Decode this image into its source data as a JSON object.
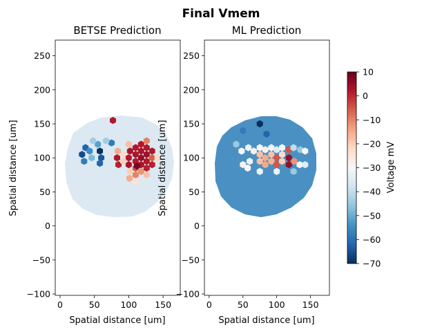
{
  "figure_title": "Final Vmem",
  "colorbar": {
    "label": "Voltage mV",
    "ticks": [
      10,
      0,
      -10,
      -20,
      -30,
      -40,
      -50,
      -60,
      -70
    ],
    "range": [
      -70,
      10
    ],
    "colormap": "RdBu_r",
    "colors": [
      "#053061",
      "#2166ac",
      "#4393c3",
      "#92c5de",
      "#d1e5f0",
      "#f7f7f7",
      "#fddbc7",
      "#f4a582",
      "#d6604d",
      "#b2182b",
      "#67001f"
    ]
  },
  "chart_data": [
    {
      "type": "heatmap",
      "title": "BETSE Prediction",
      "xlabel": "Spatial distance [um]",
      "ylabel": "Spatial distance [um]",
      "xlim": [
        -7,
        175
      ],
      "ylim": [
        -102,
        273
      ],
      "xticks": [
        "0",
        "50",
        "100",
        "150"
      ],
      "yticks": [
        "250",
        "200",
        "150",
        "100",
        "50",
        "0",
        "−50",
        "−100"
      ],
      "background_vmem": -35,
      "cells_vmem": [
        {
          "x": 32,
          "y": 105,
          "v": -66
        },
        {
          "x": 37,
          "y": 115,
          "v": -62
        },
        {
          "x": 35,
          "y": 95,
          "v": -58
        },
        {
          "x": 43,
          "y": 110,
          "v": -55
        },
        {
          "x": 46,
          "y": 100,
          "v": -48
        },
        {
          "x": 55,
          "y": 120,
          "v": -52
        },
        {
          "x": 58,
          "y": 110,
          "v": -70
        },
        {
          "x": 60,
          "y": 100,
          "v": -64
        },
        {
          "x": 58,
          "y": 92,
          "v": -62
        },
        {
          "x": 48,
          "y": 125,
          "v": -44
        },
        {
          "x": 75,
          "y": 122,
          "v": -58
        },
        {
          "x": 77,
          "y": 155,
          "v": 2
        },
        {
          "x": 83,
          "y": 100,
          "v": 2
        },
        {
          "x": 84,
          "y": 110,
          "v": -15
        },
        {
          "x": 85,
          "y": 90,
          "v": 1
        },
        {
          "x": 93,
          "y": 105,
          "v": -22
        },
        {
          "x": 100,
          "y": 120,
          "v": -18
        },
        {
          "x": 102,
          "y": 110,
          "v": 3
        },
        {
          "x": 100,
          "y": 100,
          "v": 2
        },
        {
          "x": 100,
          "y": 90,
          "v": 3
        },
        {
          "x": 102,
          "y": 80,
          "v": -20
        },
        {
          "x": 101,
          "y": 70,
          "v": -15
        },
        {
          "x": 110,
          "y": 115,
          "v": 2
        },
        {
          "x": 110,
          "y": 105,
          "v": 3
        },
        {
          "x": 110,
          "y": 95,
          "v": 2
        },
        {
          "x": 110,
          "y": 85,
          "v": -5
        },
        {
          "x": 110,
          "y": 75,
          "v": -10
        },
        {
          "x": 118,
          "y": 120,
          "v": 2
        },
        {
          "x": 118,
          "y": 110,
          "v": 3
        },
        {
          "x": 118,
          "y": 100,
          "v": 5
        },
        {
          "x": 118,
          "y": 90,
          "v": 3
        },
        {
          "x": 118,
          "y": 80,
          "v": -12
        },
        {
          "x": 110,
          "y": 65,
          "v": -24
        },
        {
          "x": 126,
          "y": 115,
          "v": 2
        },
        {
          "x": 126,
          "y": 105,
          "v": 4
        },
        {
          "x": 126,
          "y": 95,
          "v": 2
        },
        {
          "x": 112,
          "y": 88,
          "v": 8
        },
        {
          "x": 126,
          "y": 85,
          "v": 1
        },
        {
          "x": 126,
          "y": 75,
          "v": -18
        },
        {
          "x": 134,
          "y": 110,
          "v": 2
        },
        {
          "x": 134,
          "y": 100,
          "v": -6
        },
        {
          "x": 134,
          "y": 90,
          "v": 1
        },
        {
          "x": 126,
          "y": 125,
          "v": -10
        },
        {
          "x": 142,
          "y": 100,
          "v": -22
        },
        {
          "x": 92,
          "y": 95,
          "v": -20
        },
        {
          "x": 67,
          "y": 125,
          "v": -44
        }
      ]
    },
    {
      "type": "heatmap",
      "title": "ML Prediction",
      "xlabel": "Spatial distance [um]",
      "ylabel": "Spatial distance [um]",
      "xlim": [
        -7,
        178
      ],
      "ylim": [
        -102,
        273
      ],
      "xticks": [
        "0",
        "50",
        "100",
        "150"
      ],
      "yticks": [
        "250",
        "200",
        "150",
        "100",
        "50",
        "0",
        "−50",
        "−100"
      ],
      "background_vmem": -50,
      "cells_vmem": [
        {
          "x": 75,
          "y": 150,
          "v": -70
        },
        {
          "x": 50,
          "y": 140,
          "v": -58
        },
        {
          "x": 85,
          "y": 135,
          "v": -62
        },
        {
          "x": 40,
          "y": 120,
          "v": -45
        },
        {
          "x": 48,
          "y": 110,
          "v": -30
        },
        {
          "x": 58,
          "y": 115,
          "v": -32
        },
        {
          "x": 66,
          "y": 110,
          "v": -28
        },
        {
          "x": 75,
          "y": 115,
          "v": -30
        },
        {
          "x": 83,
          "y": 112,
          "v": -28
        },
        {
          "x": 92,
          "y": 115,
          "v": -32
        },
        {
          "x": 100,
          "y": 112,
          "v": -35
        },
        {
          "x": 108,
          "y": 115,
          "v": -30
        },
        {
          "x": 118,
          "y": 112,
          "v": -5
        },
        {
          "x": 125,
          "y": 115,
          "v": -40
        },
        {
          "x": 135,
          "y": 112,
          "v": -45
        },
        {
          "x": 75,
          "y": 105,
          "v": -18
        },
        {
          "x": 83,
          "y": 100,
          "v": -15
        },
        {
          "x": 92,
          "y": 105,
          "v": -18
        },
        {
          "x": 100,
          "y": 100,
          "v": -5
        },
        {
          "x": 108,
          "y": 105,
          "v": -22
        },
        {
          "x": 118,
          "y": 100,
          "v": 5
        },
        {
          "x": 75,
          "y": 95,
          "v": -18
        },
        {
          "x": 83,
          "y": 90,
          "v": -15
        },
        {
          "x": 92,
          "y": 95,
          "v": -16
        },
        {
          "x": 100,
          "y": 90,
          "v": -5
        },
        {
          "x": 108,
          "y": 95,
          "v": -20
        },
        {
          "x": 118,
          "y": 90,
          "v": 5
        },
        {
          "x": 126,
          "y": 95,
          "v": -12
        },
        {
          "x": 60,
          "y": 95,
          "v": -32
        },
        {
          "x": 50,
          "y": 90,
          "v": -28
        },
        {
          "x": 57,
          "y": 85,
          "v": -30
        },
        {
          "x": 125,
          "y": 80,
          "v": -45
        },
        {
          "x": 134,
          "y": 90,
          "v": -30
        },
        {
          "x": 142,
          "y": 110,
          "v": -30
        },
        {
          "x": 142,
          "y": 90,
          "v": -35
        },
        {
          "x": 100,
          "y": 80,
          "v": -32
        },
        {
          "x": 75,
          "y": 80,
          "v": -32
        }
      ]
    }
  ]
}
